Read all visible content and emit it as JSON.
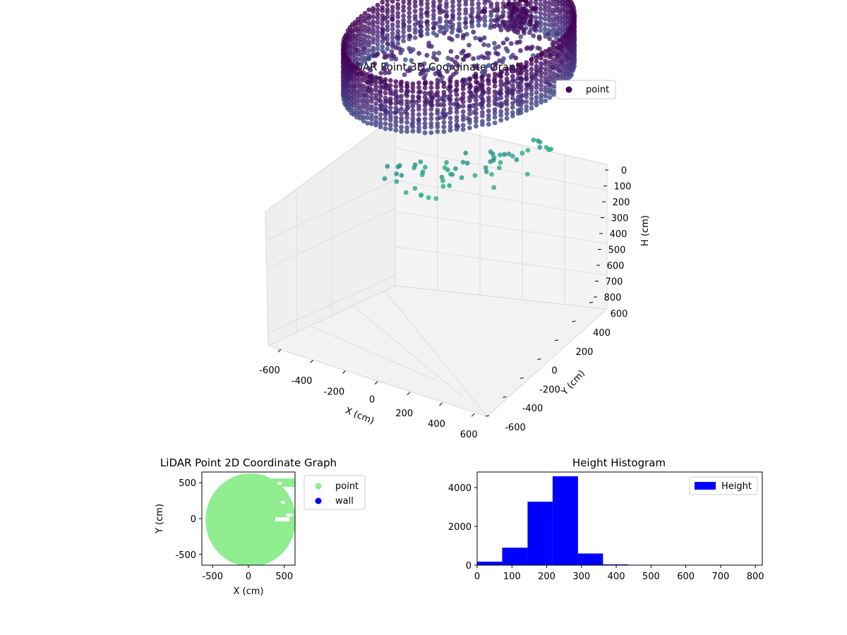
{
  "chart_data": [
    {
      "type": "scatter",
      "title": "LiDAR Point 3D Coordinate Graph",
      "xlabel": "X (cm)",
      "ylabel": "Y (cm)",
      "zlabel": "H (cm)",
      "xlim": [
        -650,
        650
      ],
      "ylim": [
        -650,
        650
      ],
      "zlim": [
        850,
        0
      ],
      "xticks": [
        -600,
        -400,
        -200,
        0,
        200,
        400,
        600
      ],
      "yticks": [
        -600,
        -400,
        -200,
        0,
        200,
        400,
        600
      ],
      "zticks": [
        0,
        100,
        200,
        300,
        400,
        500,
        600,
        700,
        800
      ],
      "grid": true,
      "legend": {
        "placement": "top-right",
        "entries": [
          "point"
        ]
      },
      "colormap": "viridis",
      "series": [
        {
          "name": "point",
          "color": "#440154",
          "description_shape": "cylindrical wall ring radius ~600 cm, heights ~150–300 cm, scattered interior points, floor points ~600–800 cm"
        }
      ]
    },
    {
      "type": "scatter",
      "title": "LiDAR Point 2D Coordinate Graph",
      "xlabel": "X (cm)",
      "ylabel": "Y (cm)",
      "xlim": [
        -650,
        650
      ],
      "ylim": [
        -650,
        650
      ],
      "xticks": [
        -500,
        0,
        500
      ],
      "yticks": [
        -500,
        0,
        500
      ],
      "legend": {
        "placement": "outside-right",
        "entries": [
          "point",
          "wall"
        ]
      },
      "series": [
        {
          "name": "point",
          "color": "#90ee90"
        },
        {
          "name": "wall",
          "color": "#0000ff"
        }
      ]
    },
    {
      "type": "bar",
      "title": "Height Histogram",
      "xlim": [
        0,
        820
      ],
      "ylim": [
        0,
        4800
      ],
      "xticks": [
        0,
        100,
        200,
        300,
        400,
        500,
        600,
        700,
        800
      ],
      "yticks": [
        0,
        2000,
        4000
      ],
      "legend": {
        "placement": "top-right",
        "entries": [
          "Height"
        ]
      },
      "bin_edges": [
        0,
        72,
        145,
        217,
        290,
        362,
        435,
        507,
        580,
        652,
        725,
        800
      ],
      "counts": [
        180,
        900,
        3270,
        4580,
        600,
        40,
        20,
        10,
        10,
        10,
        10
      ],
      "series": [
        {
          "name": "Height",
          "color": "#0000ff"
        }
      ]
    }
  ]
}
